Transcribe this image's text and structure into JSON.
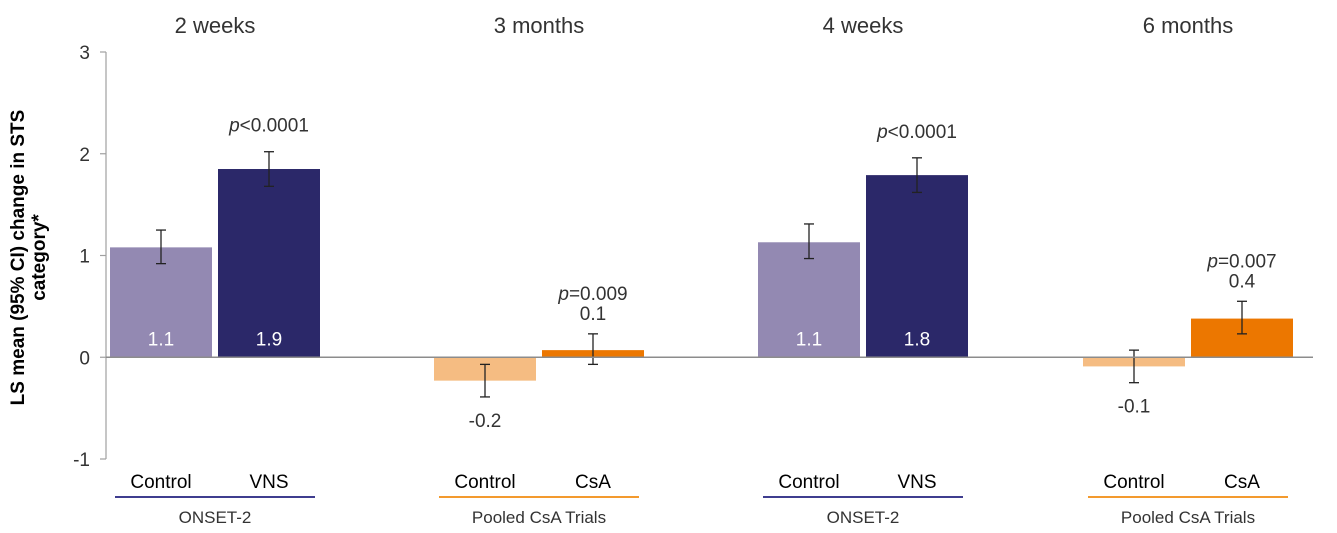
{
  "chart_data": {
    "type": "bar",
    "title": "",
    "ylabel": "LS mean (95% CI) change in STS category*",
    "ylabel_lines": [
      "LS mean (95% CI) change in STS",
      "category*"
    ],
    "xlabel": "",
    "ylim": [
      -1,
      3
    ],
    "yticks": [
      -1,
      0,
      1,
      2,
      3
    ],
    "grid": false,
    "legend": "none",
    "colors": {
      "onset_control": "#9389b2",
      "onset_vns": "#2b2869",
      "csa_control": "#f5bc82",
      "csa_treatment": "#ec7700",
      "onset_underline": "#3f3d8f",
      "csa_underline": "#f39a2e",
      "axis": "#a0a0a0",
      "text": "#333333"
    },
    "groups": [
      {
        "timepoint": "2 weeks",
        "study": "ONSET-2",
        "study_color_key": "onset_underline",
        "p_value": {
          "prefix": "p",
          "text": "<0.0001"
        },
        "bars": [
          {
            "label": "Control",
            "value": 1.08,
            "display": "1.1",
            "ci": [
              0.92,
              1.25
            ],
            "color_key": "onset_control",
            "label_inside": true
          },
          {
            "label": "VNS",
            "value": 1.85,
            "display": "1.9",
            "ci": [
              1.68,
              2.02
            ],
            "color_key": "onset_vns",
            "label_inside": true
          }
        ]
      },
      {
        "timepoint": "3 months",
        "study": "Pooled CsA Trials",
        "study_color_key": "csa_underline",
        "p_value": {
          "prefix": "p",
          "text": "=0.009"
        },
        "bars": [
          {
            "label": "Control",
            "value": -0.23,
            "display": "-0.2",
            "ci": [
              -0.39,
              -0.07
            ],
            "color_key": "csa_control",
            "label_inside": false
          },
          {
            "label": "CsA",
            "value": 0.07,
            "display": "0.1",
            "ci": [
              -0.07,
              0.23
            ],
            "color_key": "csa_treatment",
            "label_inside": false
          }
        ]
      },
      {
        "timepoint": "4 weeks",
        "study": "ONSET-2",
        "study_color_key": "onset_underline",
        "p_value": {
          "prefix": "p",
          "text": "<0.0001"
        },
        "bars": [
          {
            "label": "Control",
            "value": 1.13,
            "display": "1.1",
            "ci": [
              0.97,
              1.31
            ],
            "color_key": "onset_control",
            "label_inside": true
          },
          {
            "label": "VNS",
            "value": 1.79,
            "display": "1.8",
            "ci": [
              1.62,
              1.96
            ],
            "color_key": "onset_vns",
            "label_inside": true
          }
        ]
      },
      {
        "timepoint": "6 months",
        "study": "Pooled CsA Trials",
        "study_color_key": "csa_underline",
        "p_value": {
          "prefix": "p",
          "text": "=0.007"
        },
        "bars": [
          {
            "label": "Control",
            "value": -0.09,
            "display": "-0.1",
            "ci": [
              -0.25,
              0.07
            ],
            "color_key": "csa_control",
            "label_inside": false
          },
          {
            "label": "CsA",
            "value": 0.38,
            "display": "0.4",
            "ci": [
              0.23,
              0.55
            ],
            "color_key": "csa_treatment",
            "label_inside": false
          }
        ]
      }
    ]
  }
}
